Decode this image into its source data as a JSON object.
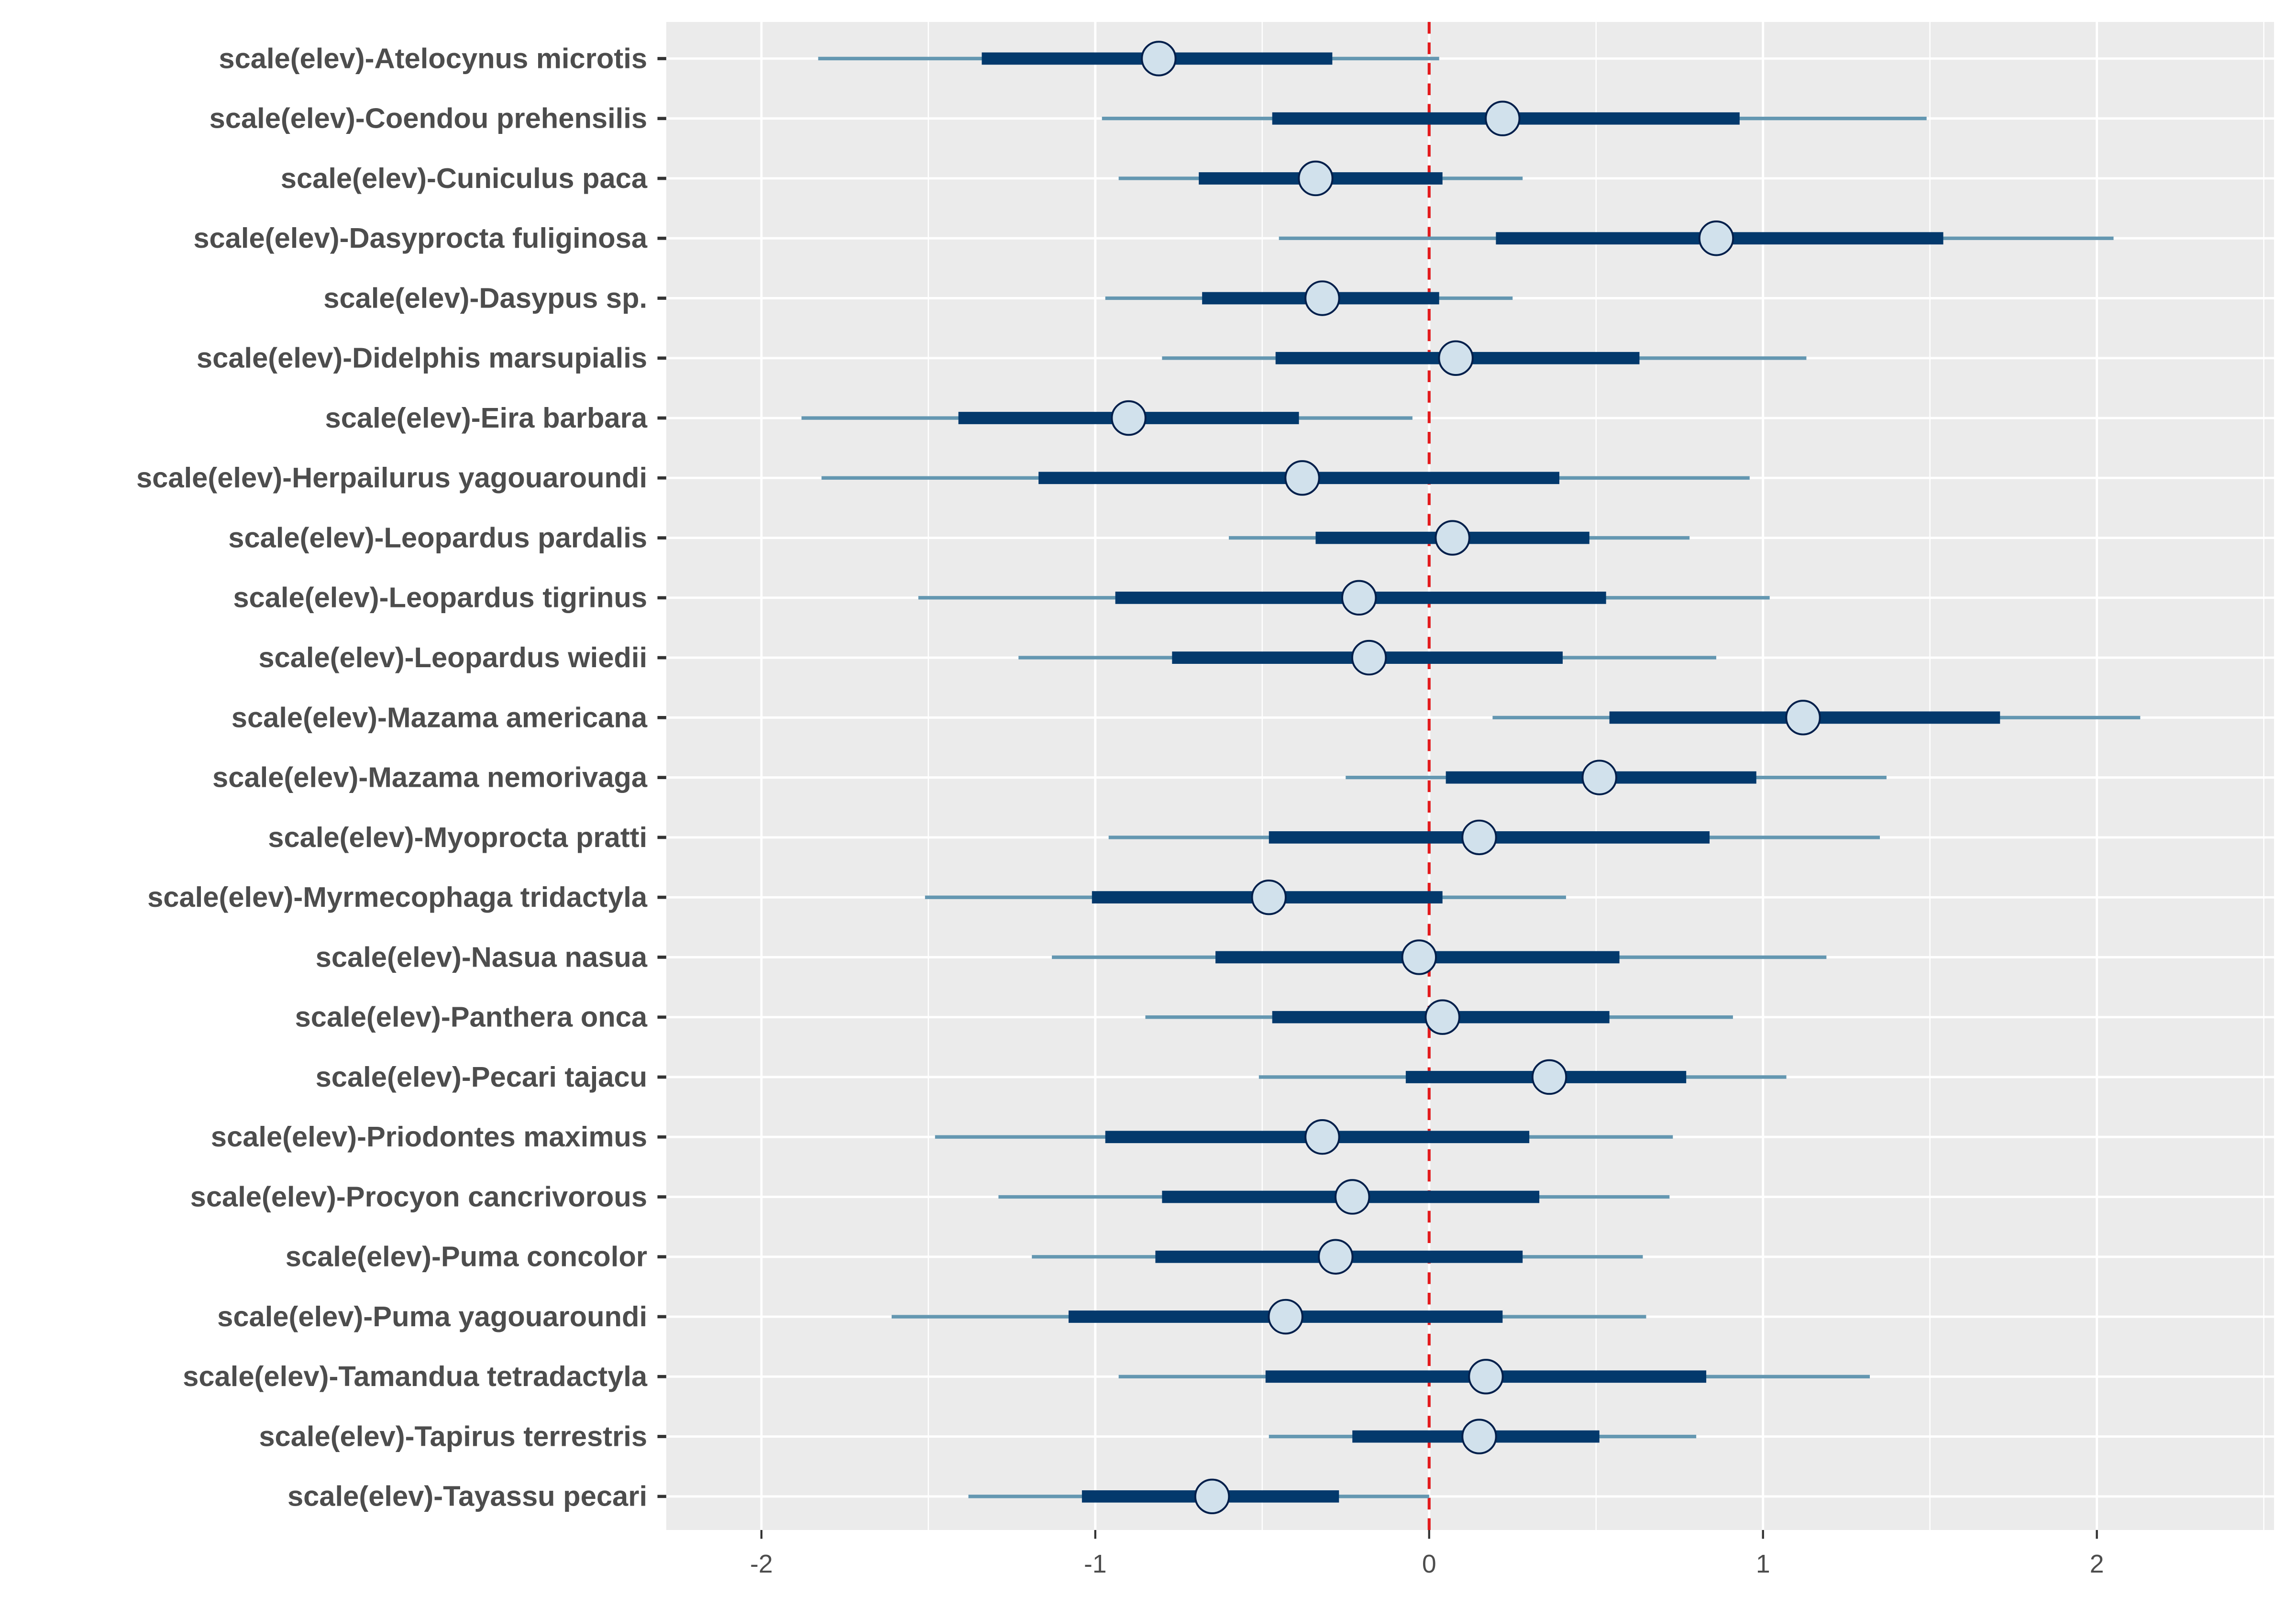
{
  "chart_data": {
    "type": "interval",
    "title": "",
    "xlabel": "",
    "ylabel": "",
    "xlim": [
      -2.29,
      2.55
    ],
    "x_ticks": [
      -2,
      -1,
      0,
      1,
      2
    ],
    "x_tick_labels": [
      "-2",
      "-1",
      "0",
      "1",
      "2"
    ],
    "reference_line": {
      "x": 0,
      "style": "dashed",
      "color": "#e31a1c"
    },
    "grid": true,
    "legend": "none",
    "colors": {
      "panel_background": "#ebebeb",
      "grid": "#ffffff",
      "outer_interval": "#6497b1",
      "inner_interval": "#03396c",
      "point_fill": "#d1e1ec",
      "point_stroke": "#011f4b",
      "text": "#4d4d4d",
      "tick": "#333333"
    },
    "categories": [
      "scale(elev)-Atelocynus microtis",
      "scale(elev)-Coendou prehensilis",
      "scale(elev)-Cuniculus paca",
      "scale(elev)-Dasyprocta fuliginosa",
      "scale(elev)-Dasypus sp.",
      "scale(elev)-Didelphis marsupialis",
      "scale(elev)-Eira barbara",
      "scale(elev)-Herpailurus yagouaroundi",
      "scale(elev)-Leopardus pardalis",
      "scale(elev)-Leopardus tigrinus",
      "scale(elev)-Leopardus wiedii",
      "scale(elev)-Mazama americana",
      "scale(elev)-Mazama nemorivaga",
      "scale(elev)-Myoprocta pratti",
      "scale(elev)-Myrmecophaga tridactyla",
      "scale(elev)-Nasua nasua",
      "scale(elev)-Panthera onca",
      "scale(elev)-Pecari tajacu",
      "scale(elev)-Priodontes maximus",
      "scale(elev)-Procyon cancrivorous",
      "scale(elev)-Puma concolor",
      "scale(elev)-Puma yagouaroundi",
      "scale(elev)-Tamandua tetradactyla",
      "scale(elev)-Tapirus terrestris",
      "scale(elev)-Tayassu pecari"
    ],
    "series": [
      {
        "name": "outer_low",
        "values": [
          -1.83,
          -0.98,
          -0.93,
          -0.45,
          -0.97,
          -0.8,
          -1.88,
          -1.82,
          -0.6,
          -1.53,
          -1.23,
          0.19,
          -0.25,
          -0.96,
          -1.51,
          -1.13,
          -0.85,
          -0.51,
          -1.48,
          -1.29,
          -1.19,
          -1.61,
          -0.93,
          -0.48,
          -1.38
        ]
      },
      {
        "name": "inner_low",
        "values": [
          -1.34,
          -0.47,
          -0.69,
          0.2,
          -0.68,
          -0.46,
          -1.41,
          -1.17,
          -0.34,
          -0.94,
          -0.77,
          0.54,
          0.05,
          -0.48,
          -1.01,
          -0.64,
          -0.47,
          -0.07,
          -0.97,
          -0.8,
          -0.82,
          -1.08,
          -0.49,
          -0.23,
          -1.04
        ]
      },
      {
        "name": "estimate",
        "values": [
          -0.81,
          0.22,
          -0.34,
          0.86,
          -0.32,
          0.08,
          -0.9,
          -0.38,
          0.07,
          -0.21,
          -0.18,
          1.12,
          0.51,
          0.15,
          -0.48,
          -0.03,
          0.04,
          0.36,
          -0.32,
          -0.23,
          -0.28,
          -0.43,
          0.17,
          0.15,
          -0.65
        ]
      },
      {
        "name": "inner_high",
        "values": [
          -0.29,
          0.93,
          0.04,
          1.54,
          0.03,
          0.63,
          -0.39,
          0.39,
          0.48,
          0.53,
          0.4,
          1.71,
          0.98,
          0.84,
          0.04,
          0.57,
          0.54,
          0.77,
          0.3,
          0.33,
          0.28,
          0.22,
          0.83,
          0.51,
          -0.27
        ]
      },
      {
        "name": "outer_high",
        "values": [
          0.03,
          1.49,
          0.28,
          2.05,
          0.25,
          1.13,
          -0.05,
          0.96,
          0.78,
          1.02,
          0.86,
          2.13,
          1.37,
          1.35,
          0.41,
          1.19,
          0.91,
          1.07,
          0.73,
          0.72,
          0.64,
          0.65,
          1.32,
          0.8,
          0.0
        ]
      }
    ]
  }
}
